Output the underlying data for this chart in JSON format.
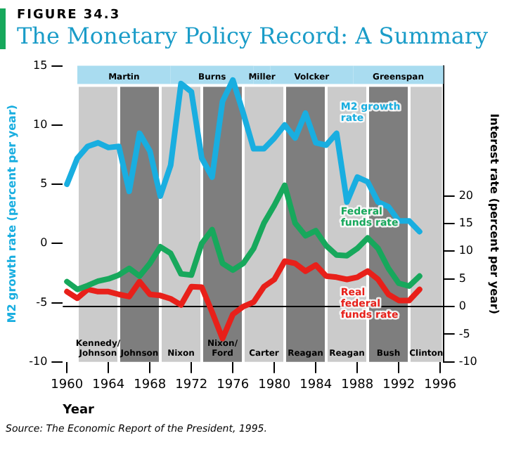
{
  "chart_data": {
    "type": "line",
    "subtitle": "FIGURE 34.3",
    "title": "The Monetary Policy Record: A Summary",
    "xlabel": "Year",
    "ylabel": "M2 growth rate (percent per year)",
    "y2label": "Interest rate (percent per year)",
    "x": [
      1960,
      1961,
      1962,
      1963,
      1964,
      1965,
      1966,
      1967,
      1968,
      1969,
      1970,
      1971,
      1972,
      1973,
      1974,
      1975,
      1976,
      1977,
      1978,
      1979,
      1980,
      1981,
      1982,
      1983,
      1984,
      1985,
      1986,
      1987,
      1988,
      1989,
      1990,
      1991,
      1992,
      1993,
      1994
    ],
    "series": [
      {
        "name": "M2 growth rate",
        "color": "#19aee0",
        "values": [
          5.0,
          7.2,
          8.2,
          8.5,
          8.1,
          8.2,
          4.4,
          9.3,
          7.8,
          4.0,
          6.6,
          13.5,
          12.8,
          7.2,
          5.6,
          12.0,
          13.8,
          11.0,
          8.0,
          8.0,
          8.9,
          10.0,
          8.9,
          11.0,
          8.5,
          8.3,
          9.3,
          3.5,
          5.6,
          5.2,
          3.5,
          3.1,
          1.9,
          1.9,
          1.0
        ]
      },
      {
        "name": "Federal funds rate",
        "color": "#17a85c",
        "axis": "y2",
        "values": [
          4.5,
          3.1,
          3.8,
          4.6,
          5.0,
          5.7,
          6.9,
          5.5,
          7.8,
          10.8,
          9.6,
          5.9,
          5.7,
          11.4,
          13.9,
          7.8,
          6.6,
          7.8,
          10.5,
          15.1,
          18.3,
          21.9,
          15.1,
          12.8,
          13.7,
          11.0,
          9.3,
          9.2,
          10.5,
          12.4,
          10.5,
          6.9,
          4.2,
          3.7,
          5.5
        ]
      },
      {
        "name": "Real federal funds rate",
        "color": "#e8201a",
        "axis": "y2",
        "values": [
          2.7,
          1.5,
          3.1,
          2.7,
          2.7,
          2.2,
          1.8,
          4.5,
          2.2,
          2.0,
          1.4,
          0.3,
          3.6,
          3.5,
          -1.0,
          -5.8,
          -1.4,
          0.0,
          0.8,
          3.6,
          4.9,
          8.2,
          7.8,
          6.4,
          7.5,
          5.5,
          5.3,
          4.9,
          5.3,
          6.4,
          4.9,
          2.2,
          1.1,
          1.1,
          3.1
        ]
      }
    ],
    "xlim": [
      1959.6,
      1996.3
    ],
    "xticks": [
      1960,
      1964,
      1968,
      1972,
      1976,
      1980,
      1984,
      1988,
      1992,
      1996
    ],
    "ylim": [
      -10,
      15
    ],
    "yticks": [
      -10,
      -5,
      0,
      5,
      10,
      15
    ],
    "y2lim": [
      -10,
      43.5
    ],
    "y2ticks": [
      -10,
      -5,
      0,
      5,
      10,
      15,
      20
    ],
    "ref_lines": [
      {
        "axis": "y2",
        "value": 0,
        "color": "#000000"
      }
    ],
    "bands": [
      {
        "axis": "x",
        "from": 1961,
        "to": 1965,
        "label": "Kennedy/Johnson",
        "color": "#cbcbcb"
      },
      {
        "axis": "x",
        "from": 1965,
        "to": 1969,
        "label": "Johnson",
        "color": "#7e7e7e"
      },
      {
        "axis": "x",
        "from": 1969,
        "to": 1973,
        "label": "Nixon",
        "color": "#cbcbcb"
      },
      {
        "axis": "x",
        "from": 1973,
        "to": 1977,
        "label": "Nixon/Ford",
        "color": "#7e7e7e"
      },
      {
        "axis": "x",
        "from": 1977,
        "to": 1981,
        "label": "Carter",
        "color": "#cbcbcb"
      },
      {
        "axis": "x",
        "from": 1981,
        "to": 1985,
        "label": "Reagan",
        "color": "#7e7e7e"
      },
      {
        "axis": "x",
        "from": 1985,
        "to": 1989,
        "label": "Reagan",
        "color": "#cbcbcb"
      },
      {
        "axis": "x",
        "from": 1989,
        "to": 1993,
        "label": "Bush",
        "color": "#7e7e7e"
      },
      {
        "axis": "x",
        "from": 1993,
        "to": 1996.3,
        "label": "Clinton",
        "color": "#cbcbcb"
      },
      {
        "axis": "x",
        "from": 1961,
        "to": 1970,
        "label": "Martin",
        "color": "#a9dcf0"
      },
      {
        "axis": "x",
        "from": 1970,
        "to": 1978,
        "label": "Burns",
        "color": "#a9dcf0"
      },
      {
        "axis": "x",
        "from": 1978,
        "to": 1979.6,
        "label": "Miller",
        "color": "#a9dcf0"
      },
      {
        "axis": "x",
        "from": 1979.6,
        "to": 1987.6,
        "label": "Volcker",
        "color": "#a9dcf0"
      },
      {
        "axis": "x",
        "from": 1987.6,
        "to": 1996.3,
        "label": "Greenspan",
        "color": "#a9dcf0"
      }
    ],
    "annotations": [
      "Source: The Economic Report of the President, 1995."
    ]
  }
}
